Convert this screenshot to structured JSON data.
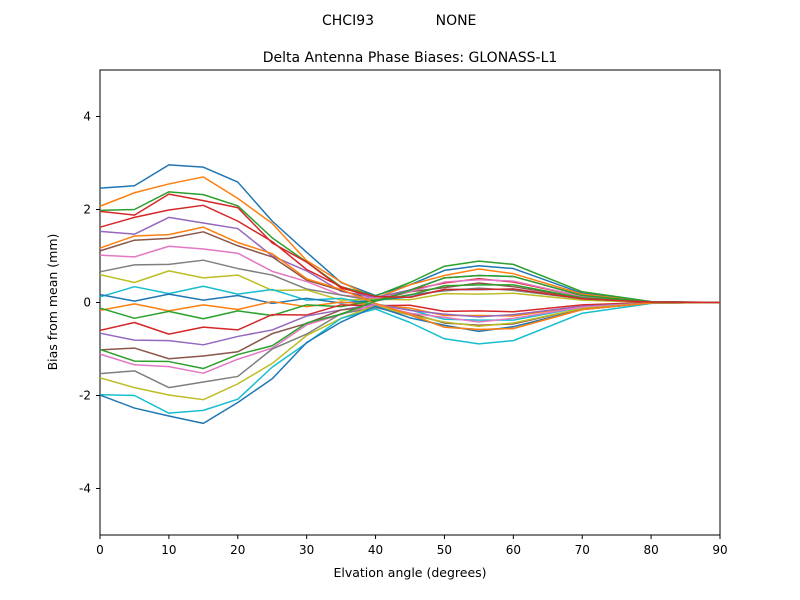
{
  "header": {
    "station": "CHCI93",
    "mode": "NONE"
  },
  "chart_data": {
    "type": "line",
    "title": "Delta Antenna Phase Biases: GLONASS-L1",
    "xlabel": "Elvation angle (degrees)",
    "ylabel": "Bias from mean (mm)",
    "xlim": [
      0,
      90
    ],
    "ylim": [
      -5,
      5
    ],
    "x_ticks": [
      0,
      10,
      20,
      30,
      40,
      50,
      60,
      70,
      80,
      90
    ],
    "y_ticks": [
      -4,
      -2,
      0,
      2,
      4
    ],
    "grid": false,
    "legend": "none",
    "line_width": 1.5,
    "x": [
      0,
      5,
      10,
      15,
      20,
      25,
      30,
      35,
      40,
      45,
      50,
      55,
      60,
      70,
      80,
      90
    ],
    "series": [
      {
        "color": "#1f77b4",
        "values": [
          2.46,
          2.51,
          2.96,
          2.91,
          2.59,
          1.75,
          1.08,
          0.43,
          0.15,
          0.38,
          0.69,
          0.79,
          0.73,
          0.2,
          0.02,
          0.0
        ]
      },
      {
        "color": "#ff7f0e",
        "values": [
          2.07,
          2.36,
          2.55,
          2.7,
          2.24,
          1.7,
          0.9,
          0.44,
          0.09,
          0.38,
          0.58,
          0.72,
          0.62,
          0.18,
          0.01,
          0.0
        ]
      },
      {
        "color": "#2ca02c",
        "values": [
          1.98,
          2.0,
          2.38,
          2.32,
          2.08,
          1.39,
          0.87,
          0.34,
          0.14,
          0.43,
          0.78,
          0.89,
          0.82,
          0.23,
          0.02,
          0.0
        ]
      },
      {
        "color": "#d62728",
        "values": [
          1.62,
          1.83,
          1.99,
          2.09,
          1.75,
          1.31,
          0.71,
          0.34,
          0.07,
          0.27,
          0.42,
          0.51,
          0.44,
          0.13,
          0.01,
          0.0
        ]
      },
      {
        "color": "#9467bd",
        "values": [
          1.53,
          1.47,
          1.83,
          1.71,
          1.59,
          1.0,
          0.68,
          0.24,
          0.11,
          0.27,
          0.53,
          0.58,
          0.56,
          0.15,
          0.01,
          0.0
        ]
      },
      {
        "color": "#8c564b",
        "values": [
          1.11,
          1.34,
          1.38,
          1.52,
          1.22,
          0.98,
          0.48,
          0.26,
          0.04,
          0.23,
          0.32,
          0.42,
          0.34,
          0.1,
          0.01,
          0.0
        ]
      },
      {
        "color": "#e377c2",
        "values": [
          1.02,
          0.98,
          1.21,
          1.15,
          1.06,
          0.67,
          0.45,
          0.16,
          0.09,
          0.23,
          0.44,
          0.49,
          0.46,
          0.13,
          0.01,
          0.0
        ]
      },
      {
        "color": "#7f7f7f",
        "values": [
          0.66,
          0.81,
          0.82,
          0.91,
          0.73,
          0.59,
          0.29,
          0.16,
          0.03,
          0.17,
          0.25,
          0.31,
          0.26,
          0.08,
          0.01,
          0.0
        ]
      },
      {
        "color": "#bcbd22",
        "values": [
          0.6,
          0.43,
          0.68,
          0.53,
          0.59,
          0.26,
          0.27,
          0.05,
          0.07,
          0.06,
          0.19,
          0.18,
          0.2,
          0.05,
          0.0,
          0.0
        ]
      },
      {
        "color": "#17becf",
        "values": [
          0.12,
          0.34,
          0.19,
          0.35,
          0.18,
          0.28,
          0.05,
          0.09,
          -0.05,
          -0.16,
          -0.36,
          -0.38,
          -0.38,
          -0.1,
          -0.01,
          0.0
        ]
      },
      {
        "color": "#1f77b4",
        "values": [
          0.17,
          0.03,
          0.18,
          0.05,
          0.15,
          -0.02,
          0.09,
          -0.01,
          0.05,
          0.12,
          0.28,
          0.28,
          0.29,
          0.08,
          0.01,
          0.0
        ]
      },
      {
        "color": "#ff7f0e",
        "values": [
          -0.17,
          -0.03,
          -0.18,
          -0.05,
          -0.15,
          0.02,
          -0.09,
          0.01,
          -0.05,
          -0.12,
          -0.28,
          -0.28,
          -0.29,
          -0.08,
          -0.01,
          0.0
        ]
      },
      {
        "color": "#2ca02c",
        "values": [
          -0.12,
          -0.34,
          -0.19,
          -0.35,
          -0.18,
          -0.28,
          -0.05,
          -0.09,
          0.05,
          0.16,
          0.36,
          0.38,
          0.38,
          0.1,
          0.01,
          0.0
        ]
      },
      {
        "color": "#d62728",
        "values": [
          -0.6,
          -0.43,
          -0.68,
          -0.53,
          -0.59,
          -0.26,
          -0.27,
          -0.05,
          -0.07,
          -0.06,
          -0.19,
          -0.18,
          -0.2,
          -0.05,
          0.0,
          0.0
        ]
      },
      {
        "color": "#9467bd",
        "values": [
          -0.66,
          -0.81,
          -0.82,
          -0.91,
          -0.73,
          -0.59,
          -0.29,
          -0.16,
          -0.03,
          -0.17,
          -0.25,
          -0.31,
          -0.26,
          -0.08,
          -0.01,
          0.0
        ]
      },
      {
        "color": "#8c564b",
        "values": [
          -1.02,
          -0.98,
          -1.21,
          -1.15,
          -1.06,
          -0.67,
          -0.45,
          -0.16,
          -0.09,
          -0.23,
          -0.44,
          -0.49,
          -0.46,
          -0.13,
          -0.01,
          0.0
        ]
      },
      {
        "color": "#e377c2",
        "values": [
          -1.11,
          -1.34,
          -1.38,
          -1.52,
          -1.22,
          -0.98,
          -0.48,
          -0.26,
          -0.04,
          -0.23,
          -0.32,
          -0.42,
          -0.34,
          -0.1,
          -0.01,
          0.0
        ]
      },
      {
        "color": "#7f7f7f",
        "values": [
          -1.53,
          -1.47,
          -1.83,
          -1.71,
          -1.59,
          -1.0,
          -0.68,
          -0.24,
          -0.11,
          -0.27,
          -0.53,
          -0.58,
          -0.56,
          -0.15,
          -0.01,
          0.0
        ]
      },
      {
        "color": "#bcbd22",
        "values": [
          -1.62,
          -1.83,
          -1.99,
          -2.09,
          -1.75,
          -1.31,
          -0.71,
          -0.34,
          -0.07,
          -0.27,
          -0.42,
          -0.51,
          -0.44,
          -0.13,
          -0.01,
          0.0
        ]
      },
      {
        "color": "#17becf",
        "values": [
          -1.98,
          -2.0,
          -2.38,
          -2.32,
          -2.08,
          -1.39,
          -0.87,
          -0.34,
          -0.14,
          -0.43,
          -0.78,
          -0.89,
          -0.82,
          -0.23,
          -0.02,
          0.0
        ]
      },
      {
        "color": "#1f77b4",
        "values": [
          -1.99,
          -2.27,
          -2.44,
          -2.6,
          -2.15,
          -1.64,
          -0.86,
          -0.42,
          -0.08,
          -0.33,
          -0.49,
          -0.62,
          -0.52,
          -0.15,
          -0.01,
          0.0
        ]
      },
      {
        "color": "#ff7f0e",
        "values": [
          1.17,
          1.43,
          1.46,
          1.62,
          1.29,
          1.05,
          0.51,
          0.28,
          -0.02,
          -0.26,
          -0.53,
          -0.58,
          -0.56,
          -0.15,
          -0.01,
          0.0
        ]
      },
      {
        "color": "#2ca02c",
        "values": [
          -1.01,
          -1.26,
          -1.27,
          -1.42,
          -1.12,
          -0.93,
          -0.44,
          -0.25,
          0.03,
          0.26,
          0.53,
          0.58,
          0.56,
          0.15,
          0.01,
          0.0
        ]
      },
      {
        "color": "#d62728",
        "values": [
          1.96,
          1.88,
          2.33,
          2.19,
          2.04,
          1.28,
          0.87,
          0.31,
          0.13,
          0.11,
          0.28,
          0.28,
          0.29,
          0.08,
          0.01,
          0.0
        ]
      }
    ]
  }
}
